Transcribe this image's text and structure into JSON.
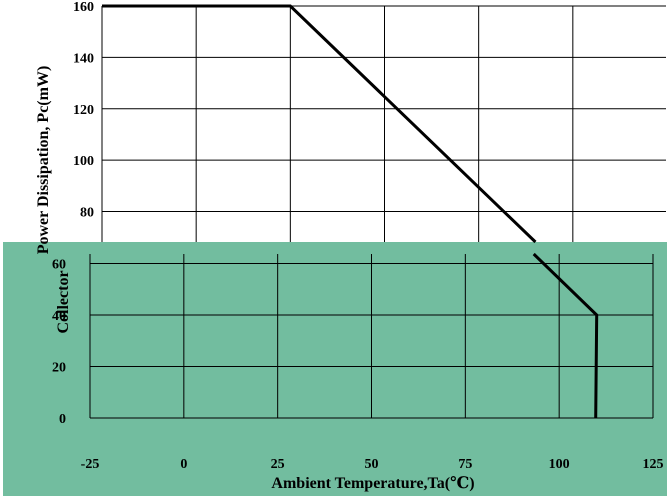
{
  "chart_data": {
    "type": "line",
    "title": "",
    "xlabel": "Ambient Temperature,Ta(℃)",
    "ylabel_upper": "Power Dissipation, Pc(mW)",
    "ylabel_lower": "Collector",
    "xlim": [
      -25,
      125
    ],
    "ylim": [
      0,
      160
    ],
    "x_ticks": [
      -25,
      0,
      25,
      50,
      75,
      100,
      125
    ],
    "y_ticks": [
      0,
      20,
      40,
      60,
      80,
      100,
      120,
      140,
      160
    ],
    "grid": true,
    "series": [
      {
        "x": [
          -25,
          25,
          110,
          110
        ],
        "y": [
          160,
          160,
          40,
          0
        ]
      }
    ],
    "colors": {
      "line": "#000000",
      "grid": "#000000",
      "overlay": "#72bd9f"
    }
  }
}
